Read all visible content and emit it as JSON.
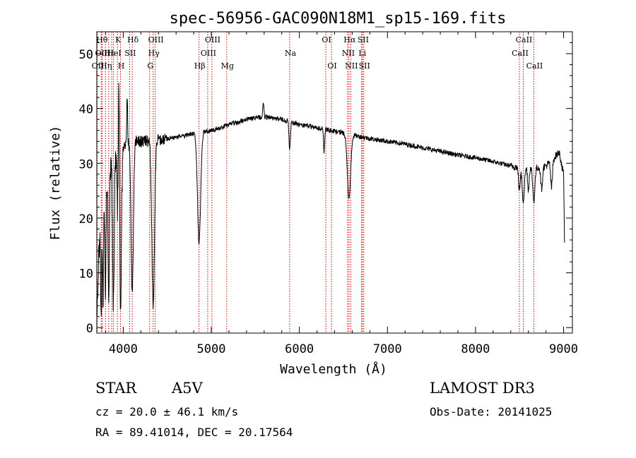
{
  "chart_data": {
    "type": "line",
    "title": "spec-56956-GAC090N18M1_sp15-169.fits",
    "xlabel": "Wavelength (Å)",
    "ylabel": "Flux (relative)",
    "xlim": [
      3700,
      9100
    ],
    "ylim": [
      -1,
      54
    ],
    "x_ticks": [
      4000,
      5000,
      6000,
      7000,
      8000,
      9000
    ],
    "y_ticks": [
      0,
      10,
      20,
      30,
      40,
      50
    ],
    "line_color": "#000000",
    "marker_color": "#cc0000",
    "continuum": [
      [
        3700,
        2
      ],
      [
        3720,
        12
      ],
      [
        3760,
        24
      ],
      [
        3800,
        28
      ],
      [
        3850,
        30
      ],
      [
        3900,
        31
      ],
      [
        3950,
        32
      ],
      [
        4000,
        33
      ],
      [
        4050,
        33.5
      ],
      [
        4100,
        34
      ],
      [
        4200,
        34
      ],
      [
        4300,
        34
      ],
      [
        4500,
        34.5
      ],
      [
        4700,
        35
      ],
      [
        4800,
        35.5
      ],
      [
        5000,
        36
      ],
      [
        5200,
        37
      ],
      [
        5400,
        38
      ],
      [
        5600,
        38.5
      ],
      [
        5800,
        38
      ],
      [
        6000,
        37
      ],
      [
        6200,
        36.5
      ],
      [
        6500,
        35.5
      ],
      [
        6800,
        34.5
      ],
      [
        7000,
        34
      ],
      [
        7200,
        33.5
      ],
      [
        7500,
        32.5
      ],
      [
        7800,
        31.5
      ],
      [
        8000,
        31
      ],
      [
        8200,
        30.3
      ],
      [
        8400,
        29.5
      ],
      [
        8600,
        29
      ],
      [
        8800,
        29.5
      ],
      [
        8950,
        32
      ],
      [
        9000,
        28
      ],
      [
        9010,
        16
      ]
    ],
    "absorption_lines": [
      {
        "center": 3750,
        "depth": 18,
        "width": 6
      },
      {
        "center": 3771,
        "depth": 20,
        "width": 6
      },
      {
        "center": 3798,
        "depth": 22,
        "width": 7
      },
      {
        "center": 3835,
        "depth": 25,
        "width": 8
      },
      {
        "center": 3889,
        "depth": 27,
        "width": 9
      },
      {
        "center": 3934,
        "depth": 10,
        "width": 5
      },
      {
        "center": 3970,
        "depth": 28,
        "width": 10
      },
      {
        "center": 4102,
        "depth": 28,
        "width": 13
      },
      {
        "center": 4340,
        "depth": 30,
        "width": 15
      },
      {
        "center": 4861,
        "depth": 20,
        "width": 18
      },
      {
        "center": 5890,
        "depth": 5,
        "width": 8
      },
      {
        "center": 6280,
        "depth": 4,
        "width": 6
      },
      {
        "center": 6563,
        "depth": 12,
        "width": 18
      },
      {
        "center": 8498,
        "depth": 4,
        "width": 10
      },
      {
        "center": 8542,
        "depth": 6,
        "width": 12
      },
      {
        "center": 8600,
        "depth": 4,
        "width": 8
      },
      {
        "center": 8662,
        "depth": 6,
        "width": 12
      },
      {
        "center": 8750,
        "depth": 4,
        "width": 10
      },
      {
        "center": 8863,
        "depth": 5,
        "width": 10
      }
    ],
    "emission_spikes": [
      {
        "center": 3952,
        "height": 18,
        "width": 5
      },
      {
        "center": 4045,
        "height": 9,
        "width": 5
      },
      {
        "center": 5590,
        "height": 3,
        "width": 6
      }
    ],
    "line_markers": [
      {
        "wave": 3704,
        "label": "OII",
        "row": 2
      },
      {
        "wave": 3750,
        "label": "Hθ",
        "row": 0
      },
      {
        "wave": 3760,
        "label": "OIII",
        "row": 1
      },
      {
        "wave": 3798,
        "label": "Hη",
        "row": 2
      },
      {
        "wave": 3835,
        "label": "Hε",
        "row": 1
      },
      {
        "wave": 3869,
        "label": "",
        "row": 0
      },
      {
        "wave": 3889,
        "label": "HeI",
        "row": 1
      },
      {
        "wave": 3934,
        "label": "K",
        "row": 0
      },
      {
        "wave": 3969,
        "label": "H",
        "row": 2
      },
      {
        "wave": 4072,
        "label": "SII",
        "row": 1
      },
      {
        "wave": 4102,
        "label": "Hδ",
        "row": 0
      },
      {
        "wave": 4300,
        "label": "G",
        "row": 2
      },
      {
        "wave": 4340,
        "label": "Hγ",
        "row": 1
      },
      {
        "wave": 4363,
        "label": "OIII",
        "row": 0
      },
      {
        "wave": 4861,
        "label": "Hβ",
        "row": 2
      },
      {
        "wave": 4959,
        "label": "OIII",
        "row": 1
      },
      {
        "wave": 5007,
        "label": "OIII",
        "row": 0
      },
      {
        "wave": 5175,
        "label": "Mg",
        "row": 2
      },
      {
        "wave": 5890,
        "label": "Na",
        "row": 1
      },
      {
        "wave": 6300,
        "label": "OI",
        "row": 0
      },
      {
        "wave": 6364,
        "label": "OI",
        "row": 2
      },
      {
        "wave": 6548,
        "label": "NII",
        "row": 1
      },
      {
        "wave": 6563,
        "label": "Hα",
        "row": 0
      },
      {
        "wave": 6583,
        "label": "NII",
        "row": 2
      },
      {
        "wave": 6707,
        "label": "Li",
        "row": 1
      },
      {
        "wave": 6716,
        "label": "SII",
        "row": 0
      },
      {
        "wave": 6731,
        "label": "SII",
        "row": 2
      },
      {
        "wave": 8498,
        "label": "CaII",
        "row": 1
      },
      {
        "wave": 8542,
        "label": "CaII",
        "row": 0
      },
      {
        "wave": 8662,
        "label": "CaII",
        "row": 2
      }
    ]
  },
  "info": {
    "class": "STAR",
    "subclass": "A5V",
    "survey": "LAMOST DR3",
    "cz": "cz = 20.0 ± 46.1 km/s",
    "obs_date": "Obs-Date: 20141025",
    "radec": "RA =  89.41014, DEC =  20.17564"
  }
}
